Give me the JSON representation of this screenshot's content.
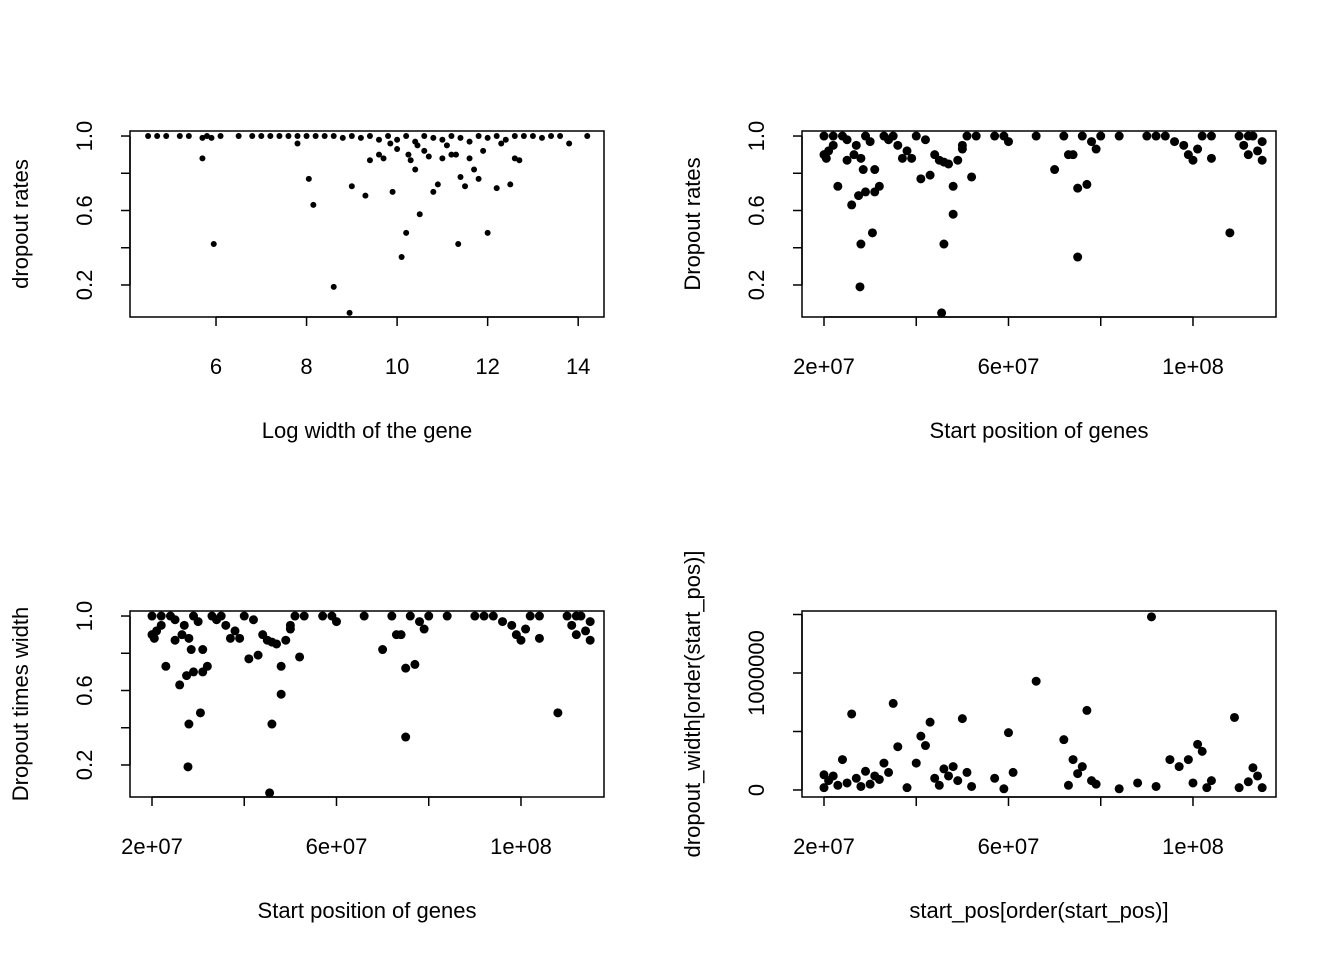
{
  "chart_data": [
    {
      "type": "scatter",
      "xlabel": "Log width of the gene",
      "ylabel": "dropout rates",
      "color": "#000000",
      "x": [
        4.5,
        4.7,
        4.9,
        5.2,
        5.4,
        5.7,
        5.8,
        5.9,
        6.1,
        6.5,
        6.8,
        7.0,
        7.2,
        7.4,
        7.6,
        7.8,
        8.0,
        8.2,
        8.4,
        8.6,
        8.8,
        9.0,
        9.2,
        9.4,
        9.6,
        9.8,
        10.0,
        10.2,
        10.4,
        10.6,
        10.8,
        11.0,
        11.2,
        11.4,
        11.6,
        11.8,
        12.0,
        12.2,
        12.4,
        12.6,
        12.8,
        13.0,
        13.2,
        13.4,
        13.6,
        13.8,
        14.2,
        5.7,
        5.95,
        7.8,
        8.05,
        8.15,
        8.6,
        8.95,
        9.0,
        9.3,
        9.4,
        9.6,
        9.7,
        9.85,
        9.9,
        10.0,
        10.1,
        10.2,
        10.25,
        10.3,
        10.4,
        10.5,
        10.6,
        10.7,
        10.8,
        10.9,
        11.0,
        11.1,
        11.2,
        11.35,
        11.4,
        11.5,
        11.6,
        11.7,
        11.8,
        11.9,
        12.0,
        12.2,
        12.5,
        12.6,
        12.7,
        11.3,
        10.45,
        12.3
      ],
      "values": [
        1,
        1,
        1,
        1,
        1,
        0.99,
        1,
        0.99,
        1,
        1,
        1,
        1,
        1,
        1,
        1,
        1,
        1,
        1,
        1,
        1,
        0.99,
        1,
        0.99,
        1,
        0.98,
        1,
        0.98,
        1,
        0.97,
        1,
        0.99,
        0.98,
        1,
        0.99,
        0.97,
        1,
        0.99,
        1,
        0.98,
        1,
        1,
        1,
        0.99,
        1,
        1,
        0.96,
        1,
        0.88,
        0.42,
        0.96,
        0.77,
        0.63,
        0.19,
        0.05,
        0.73,
        0.68,
        0.87,
        0.9,
        0.88,
        0.96,
        0.7,
        0.93,
        0.35,
        0.48,
        0.9,
        0.87,
        0.82,
        0.58,
        0.92,
        0.89,
        0.7,
        0.74,
        0.88,
        0.95,
        0.9,
        0.42,
        0.78,
        0.73,
        0.88,
        0.82,
        0.77,
        0.92,
        0.48,
        0.72,
        0.74,
        0.88,
        0.87,
        0.9,
        0.95,
        0.96
      ],
      "xlim": [
        4.1,
        14.57
      ],
      "ylim": [
        0.028,
        1.027
      ],
      "xticks": [
        6,
        8,
        10,
        12,
        14
      ],
      "xticks_minor": [],
      "yticks": [
        0.2,
        0.6,
        {
          "value": 1,
          "label": "1.0"
        }
      ],
      "yticks_minor": [
        0.4,
        0.8
      ]
    },
    {
      "type": "scatter",
      "xlabel": "Start position of genes",
      "ylabel": "Dropout rates",
      "color": "#000000",
      "x": [
        20000000,
        20000000,
        21000000,
        20500000,
        22000000,
        22000000,
        23000000,
        24000000,
        25000000,
        25000000,
        26000000,
        26500000,
        27000000,
        27500000,
        27800000,
        28000000,
        28000000,
        28500000,
        29000000,
        29000000,
        30000000,
        30500000,
        31000000,
        31000000,
        32000000,
        33000000,
        34000000,
        35000000,
        36000000,
        37000000,
        38000000,
        39000000,
        40000000,
        41000000,
        42000000,
        43000000,
        44000000,
        45000000,
        45500000,
        46000000,
        46000000,
        47000000,
        48000000,
        48000000,
        49000000,
        50000000,
        50000000,
        51000000,
        52000000,
        53000000,
        57000000,
        59000000,
        60000000,
        66000000,
        70000000,
        72000000,
        73000000,
        74000000,
        75000000,
        75000000,
        76000000,
        77000000,
        78000000,
        79000000,
        80000000,
        84000000,
        90000000,
        92000000,
        94000000,
        96000000,
        98000000,
        99000000,
        100000000,
        101000000,
        102000000,
        104000000,
        104000000,
        108000000,
        110000000,
        111000000,
        112000000,
        113000000,
        114000000,
        115000000,
        115000000,
        112000000
      ],
      "values": [
        1,
        0.9,
        0.92,
        0.88,
        0.95,
        1,
        0.73,
        1,
        0.98,
        0.87,
        0.63,
        0.9,
        0.95,
        0.68,
        0.19,
        0.42,
        0.88,
        0.82,
        0.7,
        1,
        0.97,
        0.48,
        0.82,
        0.7,
        0.73,
        1,
        0.98,
        1,
        0.95,
        0.88,
        0.92,
        0.88,
        1,
        0.77,
        0.98,
        0.79,
        0.9,
        0.87,
        0.05,
        0.42,
        0.86,
        0.85,
        0.58,
        0.73,
        0.87,
        0.95,
        0.93,
        1,
        0.78,
        1,
        1,
        1,
        0.97,
        1,
        0.82,
        1,
        0.9,
        0.9,
        0.72,
        0.35,
        1,
        0.74,
        0.97,
        0.93,
        1,
        1,
        1,
        1,
        1,
        0.97,
        0.95,
        0.9,
        0.87,
        0.93,
        1,
        1,
        0.88,
        0.48,
        1,
        0.95,
        0.9,
        1,
        0.92,
        0.87,
        0.97,
        1
      ],
      "xlim": [
        15230000,
        118000000
      ],
      "ylim": [
        0.028,
        1.027
      ],
      "xticks": [
        {
          "value": 20000000,
          "label": "2e+07"
        },
        {
          "value": 60000000,
          "label": "6e+07"
        },
        {
          "value": 100000000,
          "label": "1e+08"
        }
      ],
      "xticks_minor": [
        40000000,
        80000000
      ],
      "yticks": [
        0.2,
        0.6,
        {
          "value": 1,
          "label": "1.0"
        }
      ],
      "yticks_minor": [
        0.4,
        0.8
      ]
    },
    {
      "type": "scatter",
      "xlabel": "Start position of genes",
      "ylabel": "Dropout times width",
      "color": "#000000",
      "x": [
        20000000,
        20000000,
        21000000,
        20500000,
        22000000,
        22000000,
        23000000,
        24000000,
        25000000,
        25000000,
        26000000,
        26500000,
        27000000,
        27500000,
        27800000,
        28000000,
        28000000,
        28500000,
        29000000,
        29000000,
        30000000,
        30500000,
        31000000,
        31000000,
        32000000,
        33000000,
        34000000,
        35000000,
        36000000,
        37000000,
        38000000,
        39000000,
        40000000,
        41000000,
        42000000,
        43000000,
        44000000,
        45000000,
        45500000,
        46000000,
        46000000,
        47000000,
        48000000,
        48000000,
        49000000,
        50000000,
        50000000,
        51000000,
        52000000,
        53000000,
        57000000,
        59000000,
        60000000,
        66000000,
        70000000,
        72000000,
        73000000,
        74000000,
        75000000,
        75000000,
        76000000,
        77000000,
        78000000,
        79000000,
        80000000,
        84000000,
        90000000,
        92000000,
        94000000,
        96000000,
        98000000,
        99000000,
        100000000,
        101000000,
        102000000,
        104000000,
        104000000,
        108000000,
        110000000,
        111000000,
        112000000,
        113000000,
        114000000,
        115000000,
        115000000,
        112000000
      ],
      "values": [
        1,
        0.9,
        0.92,
        0.88,
        0.95,
        1,
        0.73,
        1,
        0.98,
        0.87,
        0.63,
        0.9,
        0.95,
        0.68,
        0.19,
        0.42,
        0.88,
        0.82,
        0.7,
        1,
        0.97,
        0.48,
        0.82,
        0.7,
        0.73,
        1,
        0.98,
        1,
        0.95,
        0.88,
        0.92,
        0.88,
        1,
        0.77,
        0.98,
        0.79,
        0.9,
        0.87,
        0.05,
        0.42,
        0.86,
        0.85,
        0.58,
        0.73,
        0.87,
        0.95,
        0.93,
        1,
        0.78,
        1,
        1,
        1,
        0.97,
        1,
        0.82,
        1,
        0.9,
        0.9,
        0.72,
        0.35,
        1,
        0.74,
        0.97,
        0.93,
        1,
        1,
        1,
        1,
        1,
        0.97,
        0.95,
        0.9,
        0.87,
        0.93,
        1,
        1,
        0.88,
        0.48,
        1,
        0.95,
        0.9,
        1,
        0.92,
        0.87,
        0.97,
        1
      ],
      "xlim": [
        15230000,
        118000000
      ],
      "ylim": [
        0.028,
        1.027
      ],
      "xticks": [
        {
          "value": 20000000,
          "label": "2e+07"
        },
        {
          "value": 60000000,
          "label": "6e+07"
        },
        {
          "value": 100000000,
          "label": "1e+08"
        }
      ],
      "xticks_minor": [
        40000000,
        80000000
      ],
      "yticks": [
        0.2,
        0.6,
        {
          "value": 1,
          "label": "1.0"
        }
      ],
      "yticks_minor": [
        0.4,
        0.8
      ]
    },
    {
      "type": "scatter",
      "xlabel": "start_pos[order(start_pos)]",
      "ylabel": "dropout_width[order(start_pos)]",
      "color": "#000000",
      "x": [
        20000000,
        20000000,
        21000000,
        22000000,
        23000000,
        24000000,
        25000000,
        26000000,
        27000000,
        28000000,
        29000000,
        30000000,
        31000000,
        32000000,
        33000000,
        34000000,
        35000000,
        36000000,
        38000000,
        40000000,
        41000000,
        42000000,
        43000000,
        44000000,
        45000000,
        46000000,
        47000000,
        48000000,
        49000000,
        50000000,
        51000000,
        52000000,
        57000000,
        59000000,
        60000000,
        61000000,
        66000000,
        72000000,
        73000000,
        74000000,
        75000000,
        76000000,
        77000000,
        78000000,
        79000000,
        84000000,
        88000000,
        91000000,
        92000000,
        95000000,
        97000000,
        99000000,
        100000000,
        101000000,
        102000000,
        103000000,
        104000000,
        109000000,
        110000000,
        112000000,
        113000000,
        114000000,
        115000000
      ],
      "values": [
        20000,
        130000,
        80000,
        120000,
        40000,
        260000,
        60000,
        650000,
        100000,
        30000,
        160000,
        50000,
        120000,
        90000,
        230000,
        150000,
        740000,
        370000,
        20000,
        230000,
        460000,
        380000,
        580000,
        100000,
        40000,
        180000,
        120000,
        200000,
        80000,
        610000,
        150000,
        30000,
        100000,
        10000,
        490000,
        150000,
        930000,
        430000,
        40000,
        260000,
        140000,
        200000,
        680000,
        80000,
        50000,
        10000,
        60000,
        1480000,
        30000,
        260000,
        200000,
        260000,
        60000,
        390000,
        330000,
        20000,
        80000,
        620000,
        20000,
        70000,
        190000,
        120000,
        20000
      ],
      "xlim": [
        15230000,
        118000000
      ],
      "ylim": [
        -60000,
        1530000
      ],
      "xticks": [
        {
          "value": 20000000,
          "label": "2e+07"
        },
        {
          "value": 60000000,
          "label": "6e+07"
        },
        {
          "value": 100000000,
          "label": "1e+08"
        }
      ],
      "xticks_minor": [
        40000000,
        80000000
      ],
      "yticks": [
        0,
        1000000
      ],
      "yticks_minor": [
        500000,
        1500000
      ]
    }
  ]
}
